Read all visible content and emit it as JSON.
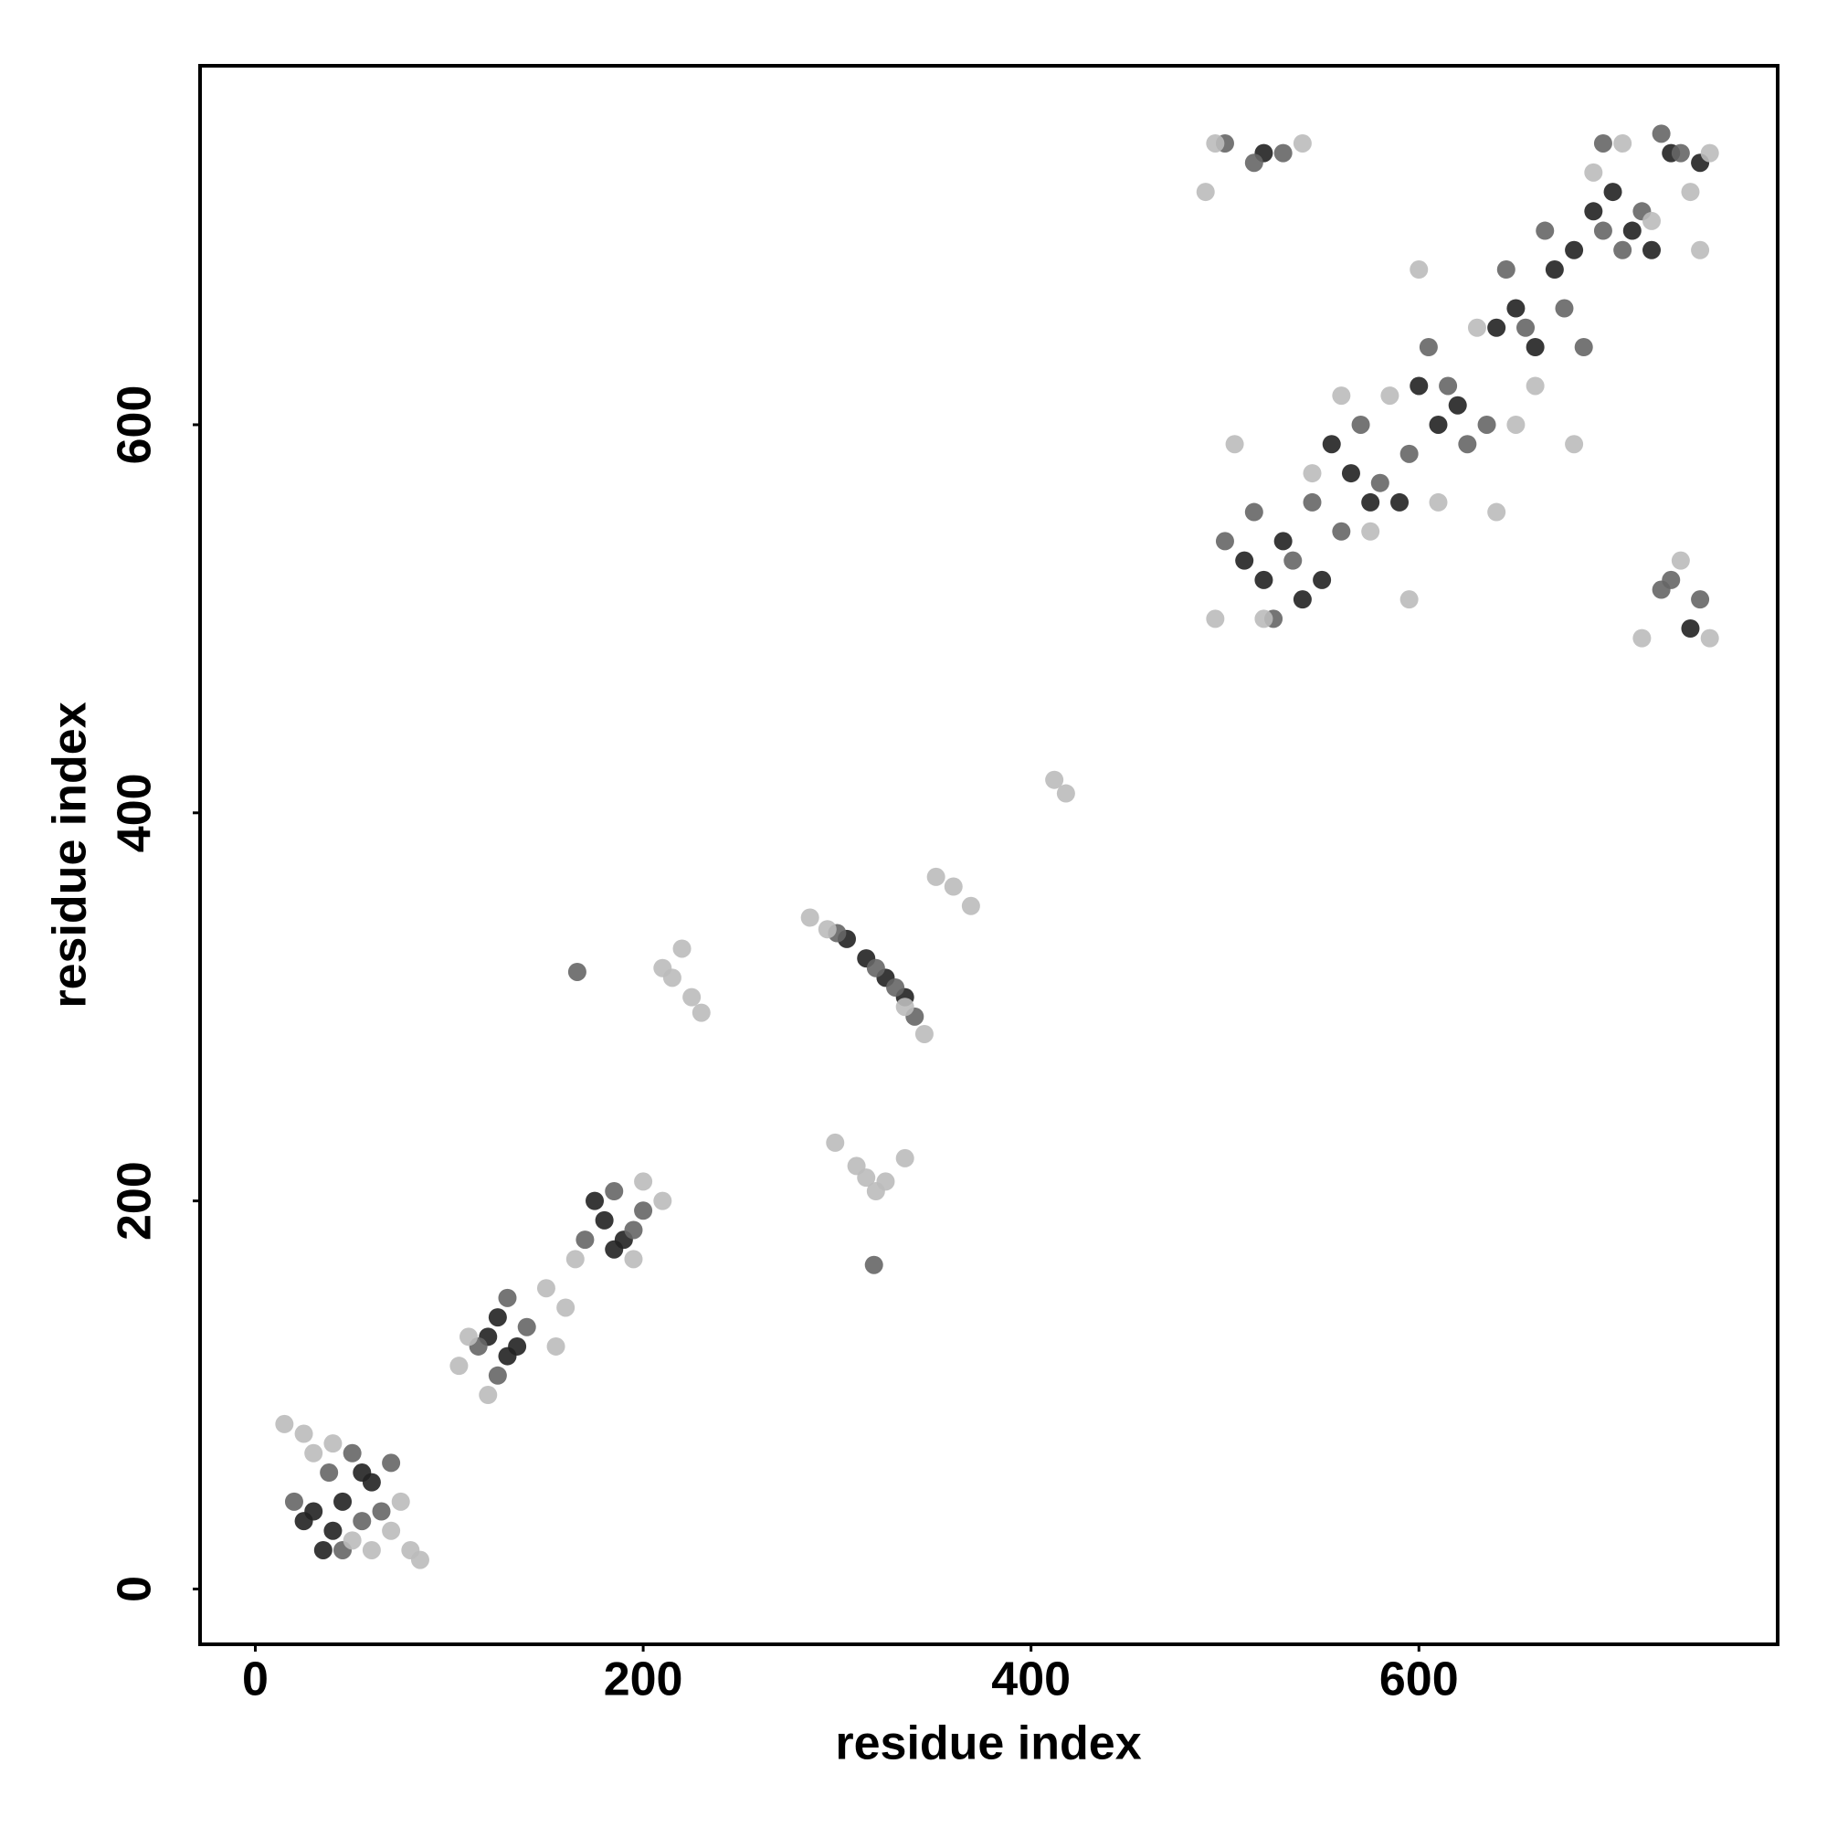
{
  "chart_data": {
    "type": "scatter",
    "xlabel": "residue index",
    "ylabel": "residue index",
    "xlim": [
      -28.5,
      785
    ],
    "ylim": [
      -28.5,
      785
    ],
    "xticks": [
      0,
      200,
      400,
      600
    ],
    "yticks": [
      0,
      200,
      400,
      600
    ],
    "grid": false,
    "series": [
      {
        "color": "#222222",
        "x": [
          30,
          40,
          55,
          35,
          45,
          60,
          25,
          120,
          130,
          125,
          135,
          180,
          185,
          175,
          190,
          305,
          315,
          325,
          335,
          510,
          520,
          530,
          540,
          550,
          555,
          565,
          575,
          590,
          600,
          610,
          620,
          640,
          650,
          660,
          670,
          680,
          690,
          700,
          710,
          720,
          730,
          745,
          520,
          740
        ],
        "values": [
          40,
          30,
          60,
          20,
          45,
          55,
          35,
          130,
          120,
          140,
          125,
          190,
          175,
          200,
          180,
          335,
          325,
          315,
          305,
          530,
          520,
          540,
          510,
          520,
          590,
          575,
          560,
          560,
          620,
          600,
          610,
          650,
          660,
          640,
          680,
          690,
          710,
          720,
          700,
          690,
          740,
          735,
          740,
          495
        ]
      },
      {
        "color": "#666666",
        "x": [
          20,
          50,
          65,
          45,
          70,
          38,
          55,
          115,
          140,
          125,
          130,
          170,
          195,
          185,
          200,
          166,
          319,
          300,
          320,
          330,
          340,
          500,
          515,
          525,
          535,
          545,
          560,
          570,
          580,
          595,
          605,
          615,
          625,
          635,
          645,
          655,
          665,
          675,
          685,
          695,
          705,
          715,
          725,
          735,
          695,
          500,
          515,
          530,
          730,
          745,
          725
        ],
        "values": [
          45,
          70,
          40,
          20,
          65,
          60,
          35,
          125,
          135,
          110,
          150,
          180,
          185,
          205,
          195,
          318,
          167,
          338,
          320,
          310,
          295,
          540,
          555,
          500,
          530,
          560,
          545,
          600,
          570,
          585,
          640,
          620,
          590,
          600,
          680,
          650,
          700,
          660,
          640,
          700,
          690,
          710,
          750,
          740,
          745,
          745,
          735,
          740,
          520,
          510,
          515
        ]
      },
      {
        "color": "#bbbbbb",
        "x": [
          15,
          25,
          40,
          70,
          80,
          85,
          30,
          50,
          60,
          75,
          105,
          110,
          120,
          150,
          155,
          160,
          165,
          200,
          210,
          195,
          210,
          220,
          225,
          230,
          215,
          286,
          295,
          335,
          345,
          299,
          310,
          320,
          325,
          335,
          315,
          351,
          360,
          369,
          412,
          418,
          495,
          505,
          520,
          545,
          560,
          575,
          585,
          595,
          600,
          610,
          630,
          640,
          650,
          660,
          680,
          690,
          705,
          720,
          740,
          750,
          745,
          490,
          495,
          540,
          715,
          750,
          735
        ],
        "values": [
          85,
          80,
          75,
          30,
          20,
          15,
          70,
          25,
          20,
          45,
          115,
          130,
          100,
          155,
          125,
          145,
          170,
          210,
          200,
          170,
          320,
          330,
          305,
          297,
          315,
          346,
          340,
          300,
          286,
          230,
          218,
          205,
          210,
          222,
          212,
          367,
          362,
          352,
          417,
          410,
          500,
          590,
          500,
          575,
          615,
          545,
          615,
          510,
          680,
          560,
          650,
          555,
          600,
          620,
          590,
          730,
          745,
          705,
          720,
          740,
          690,
          720,
          745,
          745,
          490,
          490,
          530
        ]
      }
    ]
  }
}
